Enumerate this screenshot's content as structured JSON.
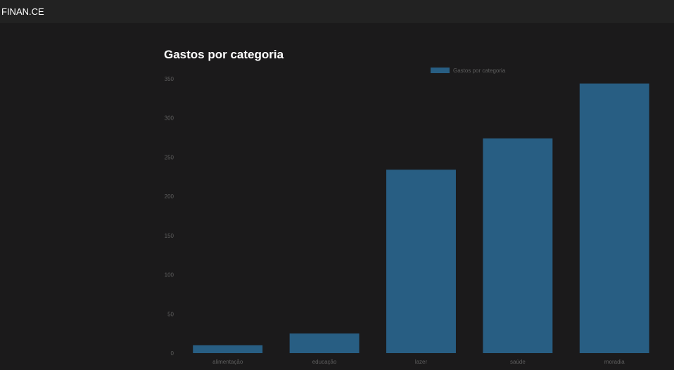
{
  "app": {
    "brand": "FINAN.CE"
  },
  "colors": {
    "background": "#1b1a1b",
    "topbar": "#222222",
    "bar": "#285e83",
    "tick_text": "#5e5e5e"
  },
  "chart_data": {
    "type": "bar",
    "title": "Gastos por categoria",
    "categories": [
      "alimentação",
      "educação",
      "lazer",
      "saúde",
      "moradia"
    ],
    "series": [
      {
        "name": "Gastos por categoria",
        "values": [
          10,
          25,
          234,
          274,
          344
        ]
      }
    ],
    "ylim": [
      0,
      350
    ],
    "yticks": [
      0,
      50,
      100,
      150,
      200,
      250,
      300,
      350
    ],
    "grid": false,
    "legend_position": "top"
  }
}
